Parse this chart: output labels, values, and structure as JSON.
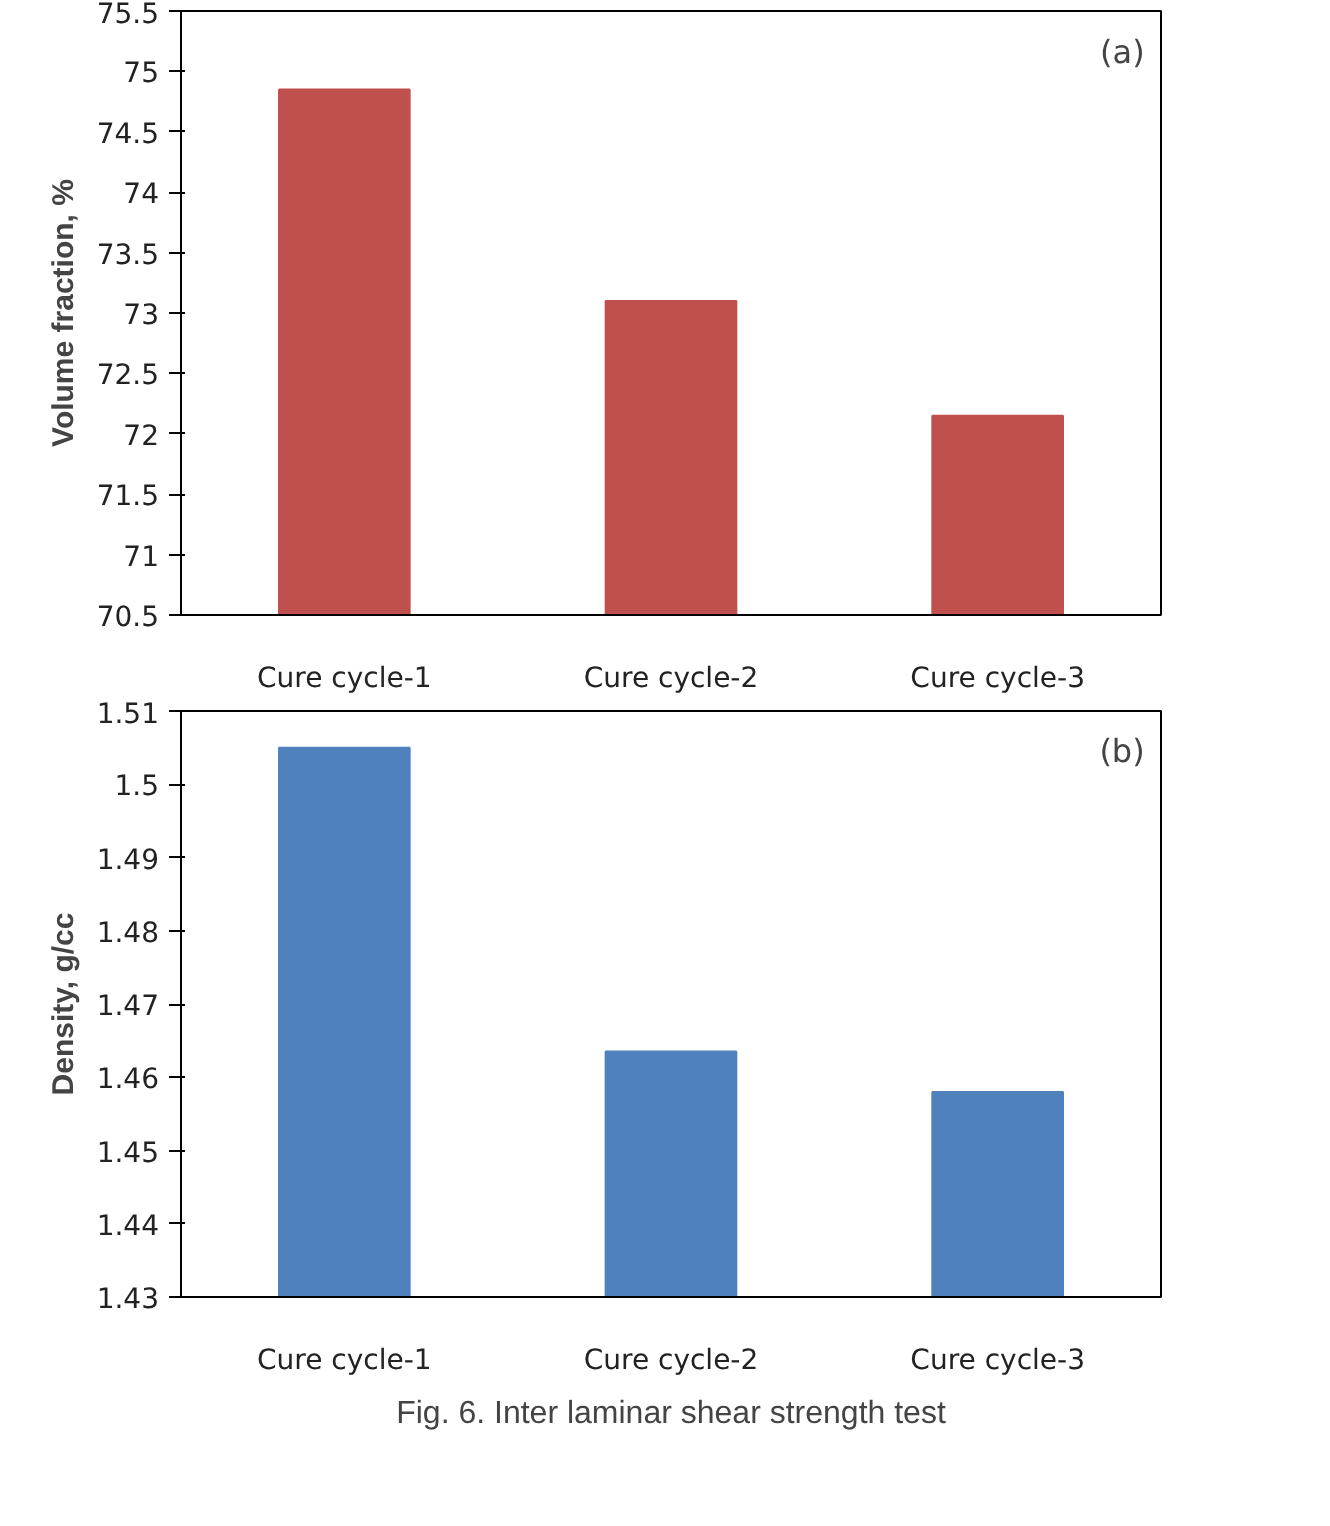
{
  "chart_data": [
    {
      "type": "bar",
      "categories": [
        "Cure cycle-1",
        "Cure cycle-2",
        "Cure cycle-3"
      ],
      "values": [
        74.85,
        73.1,
        72.15
      ],
      "color": "#c0504d",
      "ylabel": "Volume fraction, %",
      "ylim": [
        70.5,
        75.5
      ],
      "yticks": [
        70.5,
        71,
        71.5,
        72,
        72.5,
        73,
        73.5,
        74,
        74.5,
        75,
        75.5
      ],
      "grid": false,
      "annotations": [
        "(a)"
      ]
    },
    {
      "type": "bar",
      "categories": [
        "Cure cycle-1",
        "Cure cycle-2",
        "Cure cycle-3"
      ],
      "values": [
        1.505,
        1.4635,
        1.458
      ],
      "color": "#4f81bd",
      "ylabel": "Density, g/cc",
      "ylim": [
        1.43,
        1.51
      ],
      "yticks": [
        1.43,
        1.44,
        1.45,
        1.46,
        1.47,
        1.48,
        1.49,
        1.5,
        1.51
      ],
      "grid": false,
      "annotations": [
        "(b)",
        "Fig. 6. Inter laminar shear strength test"
      ]
    }
  ]
}
